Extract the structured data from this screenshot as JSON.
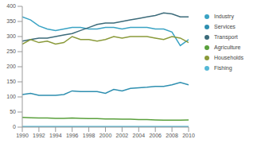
{
  "chart_data": {
    "type": "line",
    "x": [
      1990,
      1991,
      1992,
      1993,
      1994,
      1995,
      1996,
      1997,
      1998,
      1999,
      2000,
      2001,
      2002,
      2003,
      2004,
      2005,
      2006,
      2007,
      2008,
      2009,
      2010
    ],
    "xlim": [
      1990,
      2010
    ],
    "xticks": [
      1990,
      1992,
      1994,
      1996,
      1998,
      2000,
      2002,
      2004,
      2006,
      2008,
      2010
    ],
    "ylim": [
      0,
      400
    ],
    "yticks": [
      0,
      50,
      100,
      150,
      200,
      250,
      300,
      350,
      400
    ],
    "grid": false,
    "legend": "right",
    "series": [
      {
        "name": "Industry",
        "color": "#3aa3c4",
        "values": [
          365,
          355,
          335,
          325,
          320,
          325,
          330,
          330,
          325,
          325,
          330,
          330,
          325,
          330,
          330,
          330,
          325,
          325,
          315,
          270,
          290
        ]
      },
      {
        "name": "Services",
        "color": "#2e8fb0",
        "values": [
          108,
          112,
          105,
          105,
          105,
          108,
          120,
          118,
          118,
          118,
          112,
          125,
          120,
          128,
          130,
          132,
          135,
          135,
          140,
          148,
          140
        ]
      },
      {
        "name": "Transport",
        "color": "#3c6b7a",
        "values": [
          285,
          290,
          295,
          295,
          300,
          305,
          310,
          320,
          330,
          340,
          345,
          345,
          350,
          355,
          360,
          365,
          370,
          378,
          375,
          365,
          365
        ]
      },
      {
        "name": "Agriculture",
        "color": "#5aa03c",
        "values": [
          32,
          31,
          30,
          30,
          29,
          29,
          30,
          29,
          28,
          28,
          27,
          27,
          26,
          26,
          25,
          25,
          24,
          23,
          23,
          23,
          24
        ]
      },
      {
        "name": "Households",
        "color": "#8a9a3a",
        "values": [
          275,
          290,
          280,
          285,
          275,
          280,
          300,
          290,
          290,
          285,
          290,
          300,
          295,
          300,
          300,
          300,
          295,
          290,
          300,
          295,
          280
        ]
      },
      {
        "name": "Fishing",
        "color": "#55b8d6",
        "values": [
          2,
          2,
          2,
          2,
          2,
          2,
          2,
          2,
          2,
          2,
          2,
          2,
          2,
          2,
          2,
          2,
          2,
          2,
          2,
          2,
          2
        ]
      }
    ]
  }
}
